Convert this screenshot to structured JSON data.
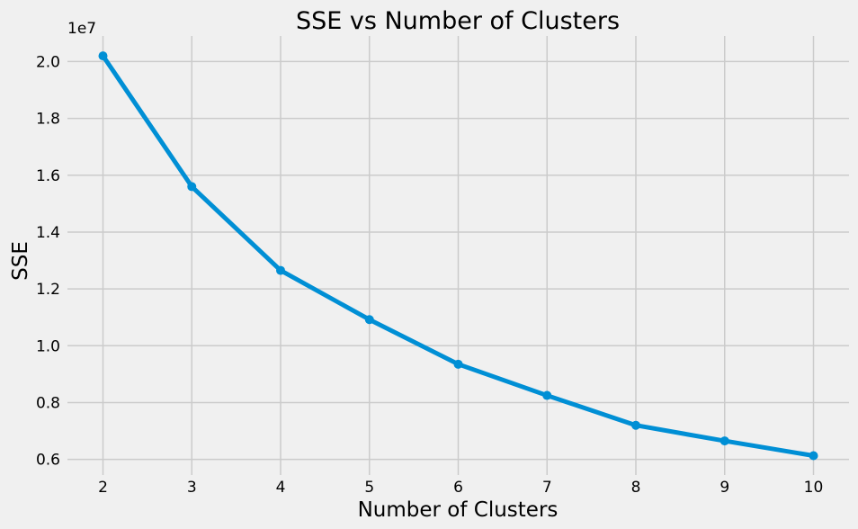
{
  "chart_data": {
    "type": "line",
    "title": "SSE vs Number of Clusters",
    "xlabel": "Number of Clusters",
    "ylabel": "SSE",
    "y_offset_label": "1e7",
    "x": [
      2,
      3,
      4,
      5,
      6,
      7,
      8,
      9,
      10
    ],
    "series": [
      {
        "values": [
          20200000,
          15600000,
          12650000,
          10920000,
          9350000,
          8250000,
          7200000,
          6650000,
          6130000
        ]
      }
    ],
    "x_ticks": [
      2,
      3,
      4,
      5,
      6,
      7,
      8,
      9,
      10
    ],
    "x_tick_labels": [
      "2",
      "3",
      "4",
      "5",
      "6",
      "7",
      "8",
      "9",
      "10"
    ],
    "y_ticks": [
      6000000,
      8000000,
      10000000,
      12000000,
      14000000,
      16000000,
      18000000,
      20000000
    ],
    "y_tick_labels": [
      "0.6",
      "0.8",
      "1.0",
      "1.2",
      "1.4",
      "1.6",
      "1.8",
      "2.0"
    ],
    "xlim": [
      1.6,
      10.4
    ],
    "ylim": [
      5450000,
      20900000
    ],
    "grid": true,
    "line_color": "#008fd5",
    "background_color": "#f0f0f0",
    "grid_color": "#cbcbcb"
  }
}
